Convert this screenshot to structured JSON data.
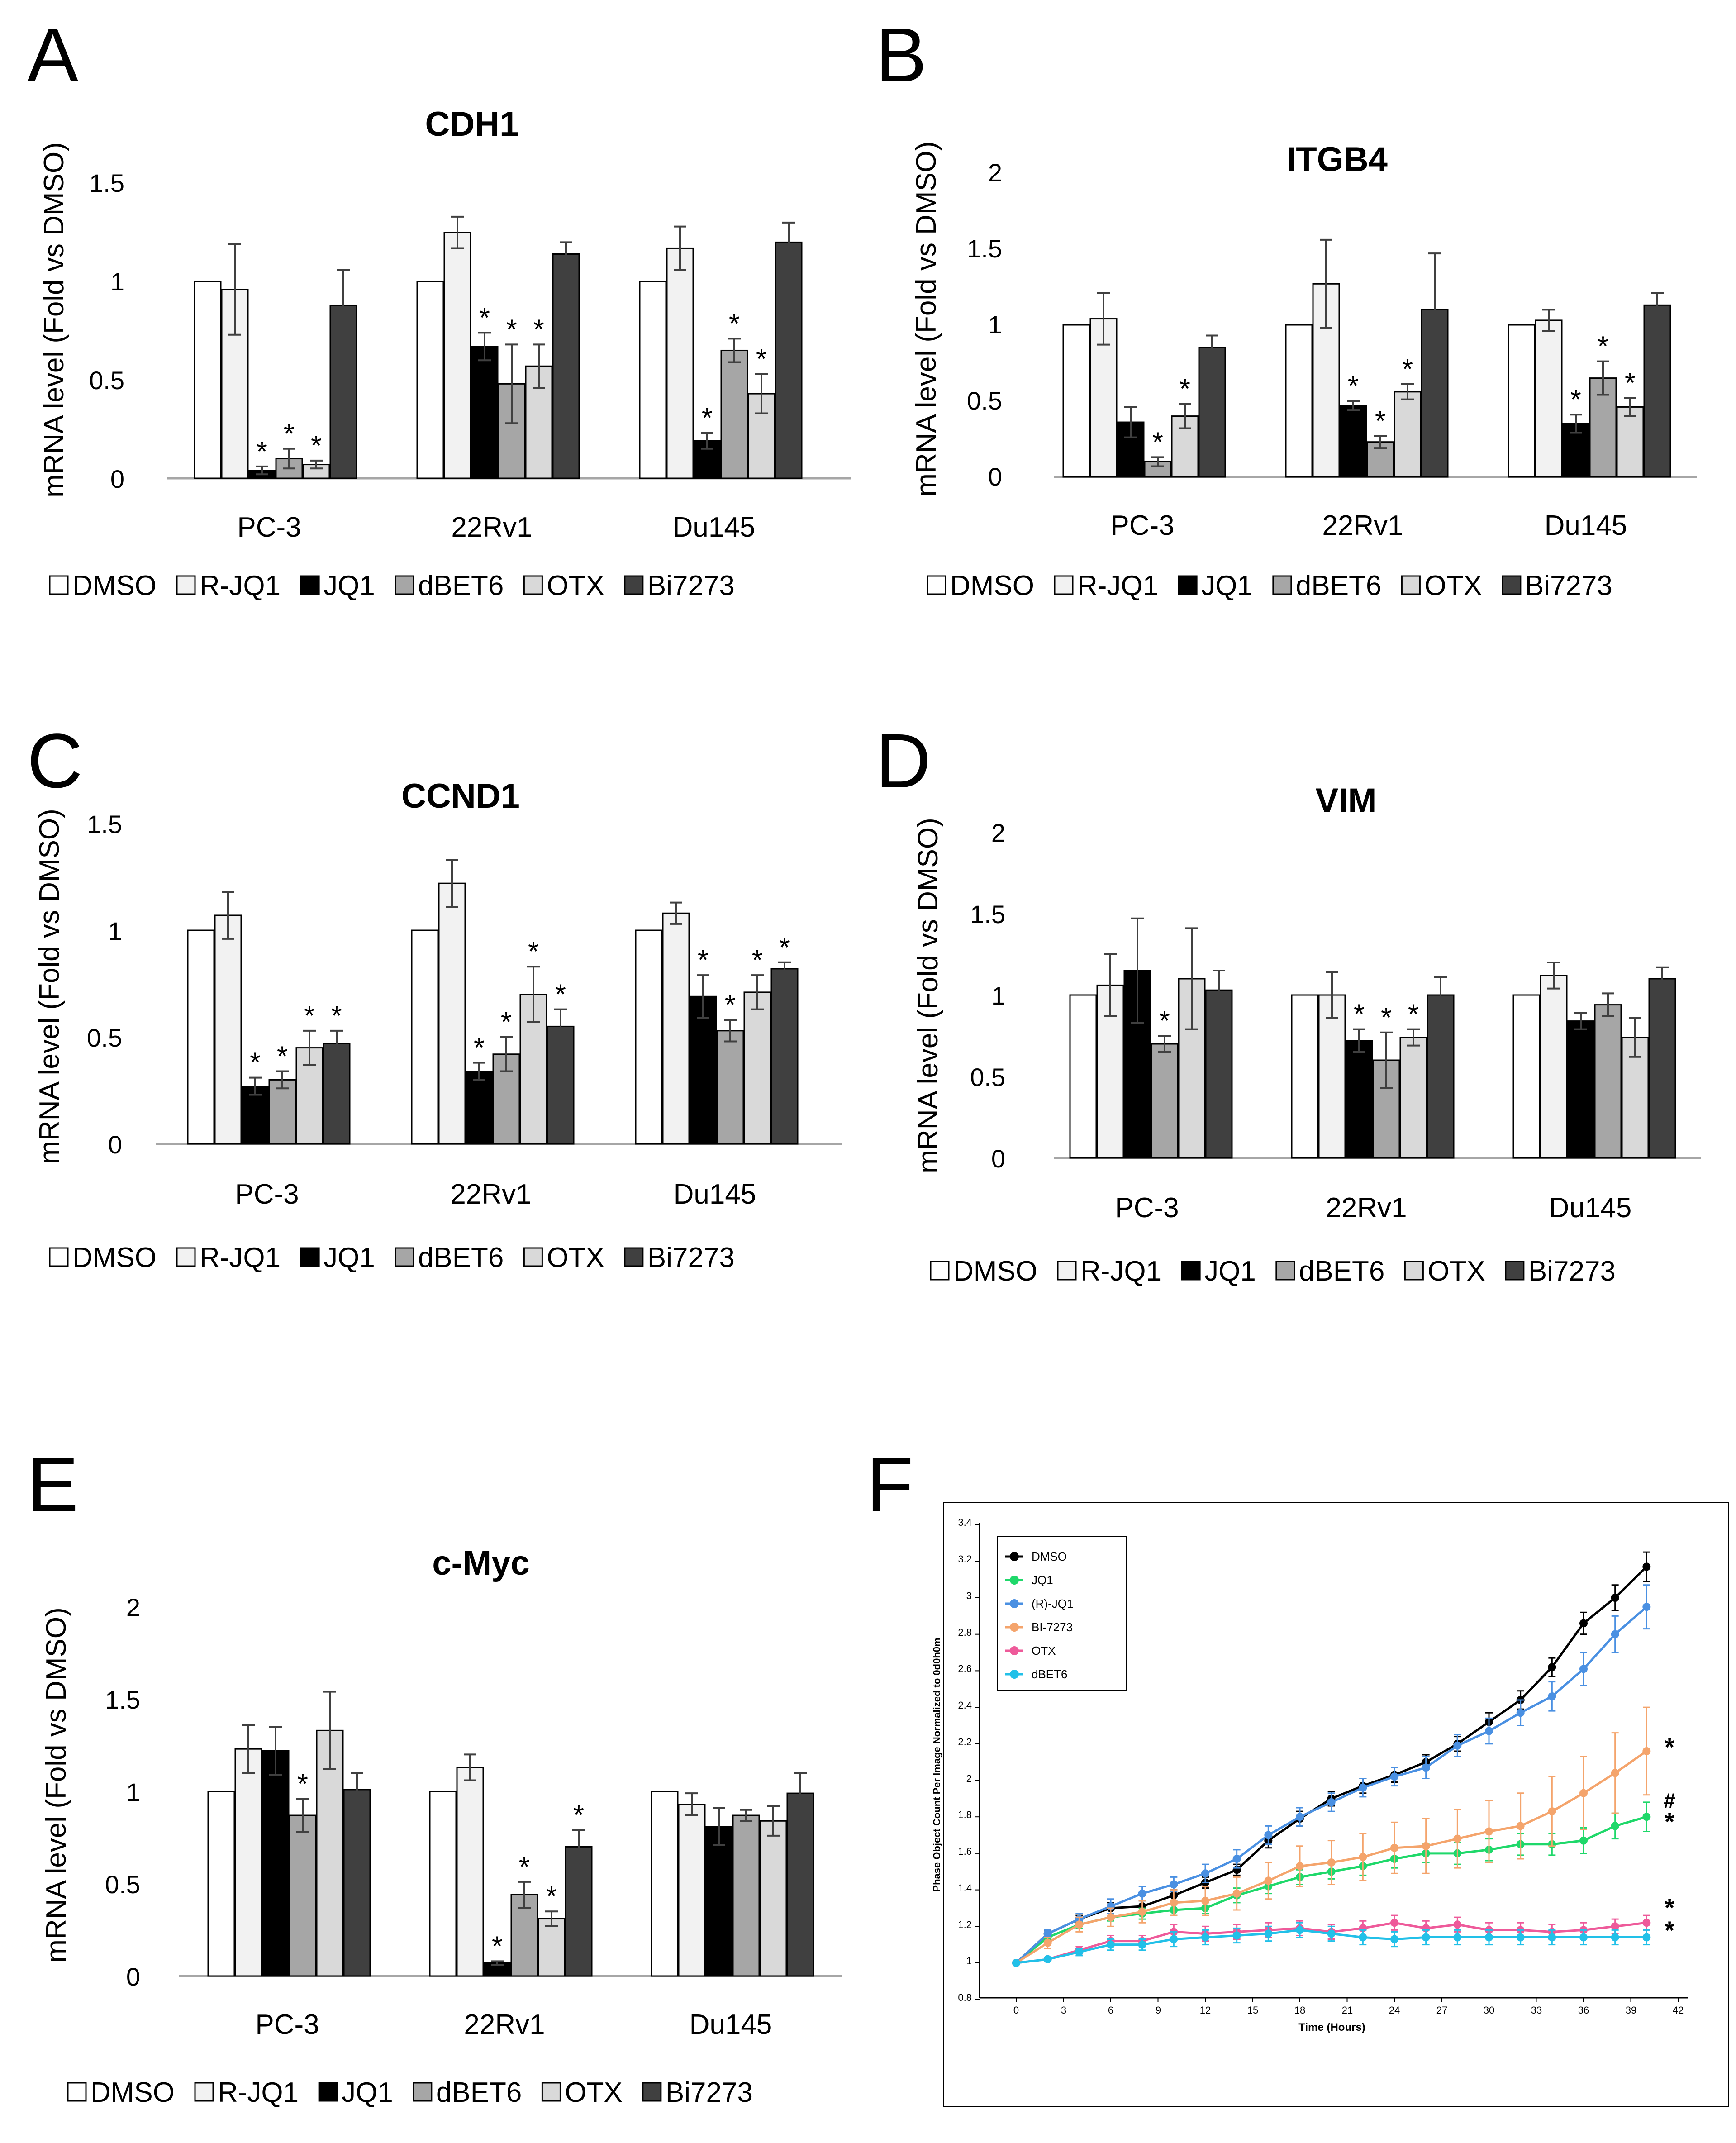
{
  "figure": {
    "legend_items": [
      {
        "label": "DMSO",
        "color": "#ffffff"
      },
      {
        "label": "R-JQ1",
        "color": "#f2f2f2"
      },
      {
        "label": "JQ1",
        "color": "#000000"
      },
      {
        "label": "dBET6",
        "color": "#a6a6a6"
      },
      {
        "label": "OTX",
        "color": "#d9d9d9"
      },
      {
        "label": "Bi7273",
        "color": "#404040"
      }
    ],
    "star": "*",
    "hash": "#"
  },
  "chart_data": [
    {
      "panel": "A",
      "type": "bar",
      "title": "CDH1",
      "ylabel": "mRNA level (Fold vs DMSO)",
      "categories": [
        "PC-3",
        "22Rv1",
        "Du145"
      ],
      "ylim": [
        0,
        1.5
      ],
      "yticks": [
        "0",
        "0.5",
        "1",
        "1.5"
      ],
      "ytick_values": [
        0,
        0.5,
        1,
        1.5
      ],
      "series": [
        {
          "name": "DMSO",
          "values": [
            1.0,
            1.0,
            1.0
          ],
          "errors": [
            0,
            0,
            0
          ],
          "sig": [
            false,
            false,
            false
          ]
        },
        {
          "name": "R-JQ1",
          "values": [
            0.96,
            1.25,
            1.17
          ],
          "errors": [
            0.23,
            0.08,
            0.11
          ],
          "sig": [
            false,
            false,
            false
          ]
        },
        {
          "name": "JQ1",
          "values": [
            0.04,
            0.67,
            0.19
          ],
          "errors": [
            0.02,
            0.07,
            0.04
          ],
          "sig": [
            true,
            true,
            true
          ]
        },
        {
          "name": "dBET6",
          "values": [
            0.1,
            0.48,
            0.65
          ],
          "errors": [
            0.05,
            0.2,
            0.06
          ],
          "sig": [
            true,
            true,
            true
          ]
        },
        {
          "name": "OTX",
          "values": [
            0.07,
            0.57,
            0.43
          ],
          "errors": [
            0.02,
            0.11,
            0.1
          ],
          "sig": [
            true,
            true,
            true
          ]
        },
        {
          "name": "Bi7273",
          "values": [
            0.88,
            1.14,
            1.2
          ],
          "errors": [
            0.18,
            0.06,
            0.1
          ],
          "sig": [
            false,
            false,
            false
          ]
        }
      ]
    },
    {
      "panel": "B",
      "type": "bar",
      "title": "ITGB4",
      "ylabel": "mRNA level (Fold vs DMSO)",
      "categories": [
        "PC-3",
        "22Rv1",
        "Du145"
      ],
      "ylim": [
        0,
        2
      ],
      "yticks": [
        "0",
        "0.5",
        "1",
        "1.5",
        "2"
      ],
      "ytick_values": [
        0,
        0.5,
        1,
        1.5,
        2
      ],
      "series": [
        {
          "name": "DMSO",
          "values": [
            1.0,
            1.0,
            1.0
          ],
          "errors": [
            0,
            0,
            0
          ],
          "sig": [
            false,
            false,
            false
          ]
        },
        {
          "name": "R-JQ1",
          "values": [
            1.04,
            1.27,
            1.03
          ],
          "errors": [
            0.17,
            0.29,
            0.07
          ],
          "sig": [
            false,
            false,
            false
          ]
        },
        {
          "name": "JQ1",
          "values": [
            0.36,
            0.47,
            0.35
          ],
          "errors": [
            0.1,
            0.03,
            0.06
          ],
          "sig": [
            true,
            true,
            true
          ]
        },
        {
          "name": "dBET6",
          "values": [
            0.1,
            0.23,
            0.65
          ],
          "errors": [
            0.03,
            0.04,
            0.11
          ],
          "sig": [
            true,
            true,
            true
          ]
        },
        {
          "name": "OTX",
          "values": [
            0.4,
            0.56,
            0.46
          ],
          "errors": [
            0.08,
            0.05,
            0.06
          ],
          "sig": [
            true,
            true,
            true
          ]
        },
        {
          "name": "Bi7273",
          "values": [
            0.85,
            1.1,
            1.13
          ],
          "errors": [
            0.08,
            0.37,
            0.08
          ],
          "sig": [
            false,
            false,
            false
          ]
        }
      ],
      "sig_below": [
        {
          "category": 0,
          "series": 2
        }
      ]
    },
    {
      "panel": "C",
      "type": "bar",
      "title": "CCND1",
      "ylabel": "mRNA level (Fold vs DMSO)",
      "categories": [
        "PC-3",
        "22Rv1",
        "Du145"
      ],
      "ylim": [
        0,
        1.5
      ],
      "yticks": [
        "0",
        "0.5",
        "1",
        "1.5"
      ],
      "ytick_values": [
        0,
        0.5,
        1,
        1.5
      ],
      "series": [
        {
          "name": "DMSO",
          "values": [
            1.0,
            1.0,
            1.0
          ],
          "errors": [
            0,
            0,
            0
          ],
          "sig": [
            false,
            false,
            false
          ]
        },
        {
          "name": "R-JQ1",
          "values": [
            1.07,
            1.22,
            1.08
          ],
          "errors": [
            0.11,
            0.11,
            0.05
          ],
          "sig": [
            false,
            false,
            false
          ]
        },
        {
          "name": "JQ1",
          "values": [
            0.27,
            0.34,
            0.69
          ],
          "errors": [
            0.04,
            0.04,
            0.1
          ],
          "sig": [
            true,
            true,
            true
          ]
        },
        {
          "name": "dBET6",
          "values": [
            0.3,
            0.42,
            0.53
          ],
          "errors": [
            0.04,
            0.08,
            0.05
          ],
          "sig": [
            true,
            true,
            true
          ]
        },
        {
          "name": "OTX",
          "values": [
            0.45,
            0.7,
            0.71
          ],
          "errors": [
            0.08,
            0.13,
            0.08
          ],
          "sig": [
            true,
            true,
            true
          ]
        },
        {
          "name": "Bi7273",
          "values": [
            0.47,
            0.55,
            0.82
          ],
          "errors": [
            0.06,
            0.08,
            0.03
          ],
          "sig": [
            true,
            true,
            true
          ]
        }
      ]
    },
    {
      "panel": "D",
      "type": "bar",
      "title": "VIM",
      "ylabel": "mRNA level (Fold vs DMSO)",
      "categories": [
        "PC-3",
        "22Rv1",
        "Du145"
      ],
      "ylim": [
        0,
        2
      ],
      "yticks": [
        "0",
        "0.5",
        "1",
        "1.5",
        "2"
      ],
      "ytick_values": [
        0,
        0.5,
        1,
        1.5,
        2
      ],
      "series": [
        {
          "name": "DMSO",
          "values": [
            1.0,
            1.0,
            1.0
          ],
          "errors": [
            0,
            0,
            0
          ],
          "sig": [
            false,
            false,
            false
          ]
        },
        {
          "name": "R-JQ1",
          "values": [
            1.06,
            1.0,
            1.12
          ],
          "errors": [
            0.19,
            0.14,
            0.08
          ],
          "sig": [
            false,
            false,
            false
          ]
        },
        {
          "name": "JQ1",
          "values": [
            1.15,
            0.72,
            0.84
          ],
          "errors": [
            0.32,
            0.07,
            0.05
          ],
          "sig": [
            false,
            true,
            false
          ]
        },
        {
          "name": "dBET6",
          "values": [
            0.7,
            0.6,
            0.94
          ],
          "errors": [
            0.05,
            0.17,
            0.07
          ],
          "sig": [
            true,
            true,
            false
          ]
        },
        {
          "name": "OTX",
          "values": [
            1.1,
            0.74,
            0.74
          ],
          "errors": [
            0.31,
            0.05,
            0.12
          ],
          "sig": [
            false,
            true,
            false
          ]
        },
        {
          "name": "Bi7273",
          "values": [
            1.03,
            1.0,
            1.1
          ],
          "errors": [
            0.12,
            0.11,
            0.07
          ],
          "sig": [
            false,
            false,
            false
          ]
        }
      ]
    },
    {
      "panel": "E",
      "type": "bar",
      "title": "c-Myc",
      "ylabel": "mRNA level (Fold vs DMSO)",
      "categories": [
        "PC-3",
        "22Rv1",
        "Du145"
      ],
      "ylim": [
        0,
        2
      ],
      "yticks": [
        "0",
        "0.5",
        "1",
        "1.5",
        "2"
      ],
      "ytick_values": [
        0,
        0.5,
        1,
        1.5,
        2
      ],
      "series": [
        {
          "name": "DMSO",
          "values": [
            1.0,
            1.0,
            1.0
          ],
          "errors": [
            0,
            0,
            0
          ],
          "sig": [
            false,
            false,
            false
          ]
        },
        {
          "name": "R-JQ1",
          "values": [
            1.23,
            1.13,
            0.93
          ],
          "errors": [
            0.13,
            0.07,
            0.06
          ],
          "sig": [
            false,
            false,
            false
          ]
        },
        {
          "name": "JQ1",
          "values": [
            1.22,
            0.07,
            0.81
          ],
          "errors": [
            0.13,
            0.01,
            0.1
          ],
          "sig": [
            false,
            true,
            false
          ]
        },
        {
          "name": "dBET6",
          "values": [
            0.87,
            0.44,
            0.87
          ],
          "errors": [
            0.09,
            0.07,
            0.03
          ],
          "sig": [
            true,
            true,
            false
          ]
        },
        {
          "name": "OTX",
          "values": [
            1.33,
            0.31,
            0.84
          ],
          "errors": [
            0.21,
            0.04,
            0.08
          ],
          "sig": [
            false,
            true,
            false
          ]
        },
        {
          "name": "Bi7273",
          "values": [
            1.01,
            0.7,
            0.99
          ],
          "errors": [
            0.09,
            0.09,
            0.11
          ],
          "sig": [
            false,
            true,
            false
          ]
        }
      ]
    },
    {
      "panel": "F",
      "type": "line",
      "title": "",
      "xlabel": "Time (Hours)",
      "ylabel": "Phase Object Count Per Image Normalized to 0d0h0m",
      "xlim": [
        -3,
        42
      ],
      "ylim": [
        0.8,
        3.4
      ],
      "xticks": [
        0,
        3,
        6,
        9,
        12,
        15,
        18,
        21,
        24,
        27,
        30,
        33,
        36,
        39,
        42
      ],
      "yticks": [
        0.8,
        1,
        1.2,
        1.4,
        1.6,
        1.8,
        2,
        2.2,
        2.4,
        2.6,
        2.8,
        3,
        3.2,
        3.4
      ],
      "ytick_labels": [
        "0.8",
        "1",
        "1.2",
        "1.4",
        "1.6",
        "1.8",
        "2",
        "2.2",
        "2.4",
        "2.6",
        "2.8",
        "3",
        "3.2",
        "3.4"
      ],
      "x": [
        0,
        2,
        4,
        6,
        8,
        10,
        12,
        14,
        16,
        18,
        20,
        22,
        24,
        26,
        28,
        30,
        32,
        34,
        36,
        38,
        40
      ],
      "series": [
        {
          "name": "DMSO",
          "color": "#000000",
          "values": [
            1.0,
            1.16,
            1.24,
            1.3,
            1.31,
            1.37,
            1.44,
            1.51,
            1.67,
            1.79,
            1.9,
            1.97,
            2.03,
            2.1,
            2.2,
            2.32,
            2.44,
            2.62,
            2.86,
            3.0,
            3.17
          ],
          "errors": [
            0,
            0.02,
            0.02,
            0.03,
            0.03,
            0.03,
            0.03,
            0.03,
            0.04,
            0.04,
            0.04,
            0.04,
            0.04,
            0.04,
            0.04,
            0.05,
            0.05,
            0.05,
            0.06,
            0.07,
            0.08
          ]
        },
        {
          "name": "JQ1",
          "color": "#1fd86a",
          "values": [
            1.0,
            1.14,
            1.21,
            1.25,
            1.27,
            1.29,
            1.3,
            1.37,
            1.42,
            1.47,
            1.5,
            1.53,
            1.57,
            1.6,
            1.6,
            1.62,
            1.65,
            1.65,
            1.67,
            1.75,
            1.8
          ],
          "errors": [
            0,
            0.02,
            0.02,
            0.02,
            0.03,
            0.03,
            0.03,
            0.04,
            0.04,
            0.04,
            0.04,
            0.05,
            0.05,
            0.05,
            0.06,
            0.06,
            0.06,
            0.06,
            0.07,
            0.07,
            0.08
          ]
        },
        {
          "name": "(R)-JQ1",
          "color": "#4a90e2",
          "values": [
            1.0,
            1.16,
            1.24,
            1.31,
            1.38,
            1.43,
            1.49,
            1.57,
            1.7,
            1.8,
            1.88,
            1.96,
            2.02,
            2.07,
            2.19,
            2.27,
            2.37,
            2.46,
            2.61,
            2.8,
            2.95
          ],
          "errors": [
            0,
            0.02,
            0.03,
            0.04,
            0.04,
            0.04,
            0.05,
            0.05,
            0.05,
            0.05,
            0.05,
            0.05,
            0.05,
            0.06,
            0.06,
            0.07,
            0.07,
            0.08,
            0.09,
            0.1,
            0.12
          ]
        },
        {
          "name": "BI-7273",
          "color": "#f4a46c",
          "values": [
            1.0,
            1.11,
            1.21,
            1.25,
            1.28,
            1.33,
            1.34,
            1.38,
            1.45,
            1.53,
            1.55,
            1.58,
            1.63,
            1.64,
            1.68,
            1.72,
            1.75,
            1.83,
            1.93,
            2.04,
            2.16
          ],
          "errors": [
            0,
            0.03,
            0.04,
            0.05,
            0.06,
            0.07,
            0.08,
            0.09,
            0.1,
            0.11,
            0.12,
            0.13,
            0.14,
            0.15,
            0.16,
            0.17,
            0.18,
            0.19,
            0.2,
            0.22,
            0.24
          ]
        },
        {
          "name": "OTX",
          "color": "#ee5a9a",
          "values": [
            1.0,
            1.02,
            1.07,
            1.12,
            1.12,
            1.17,
            1.16,
            1.17,
            1.18,
            1.19,
            1.17,
            1.19,
            1.22,
            1.19,
            1.21,
            1.18,
            1.18,
            1.17,
            1.18,
            1.2,
            1.22
          ],
          "errors": [
            0,
            0.01,
            0.02,
            0.03,
            0.03,
            0.04,
            0.04,
            0.04,
            0.04,
            0.04,
            0.04,
            0.04,
            0.04,
            0.04,
            0.04,
            0.04,
            0.04,
            0.04,
            0.04,
            0.04,
            0.04
          ]
        },
        {
          "name": "dBET6",
          "color": "#22c0e8",
          "values": [
            1.0,
            1.02,
            1.06,
            1.1,
            1.1,
            1.13,
            1.14,
            1.15,
            1.16,
            1.18,
            1.16,
            1.14,
            1.13,
            1.14,
            1.14,
            1.14,
            1.14,
            1.14,
            1.14,
            1.14,
            1.14
          ],
          "errors": [
            0,
            0.01,
            0.02,
            0.03,
            0.03,
            0.04,
            0.04,
            0.04,
            0.04,
            0.04,
            0.04,
            0.04,
            0.04,
            0.04,
            0.04,
            0.04,
            0.04,
            0.04,
            0.04,
            0.04,
            0.04
          ]
        }
      ],
      "end_marks": [
        "*",
        "#",
        "*",
        "*",
        "*"
      ]
    }
  ]
}
